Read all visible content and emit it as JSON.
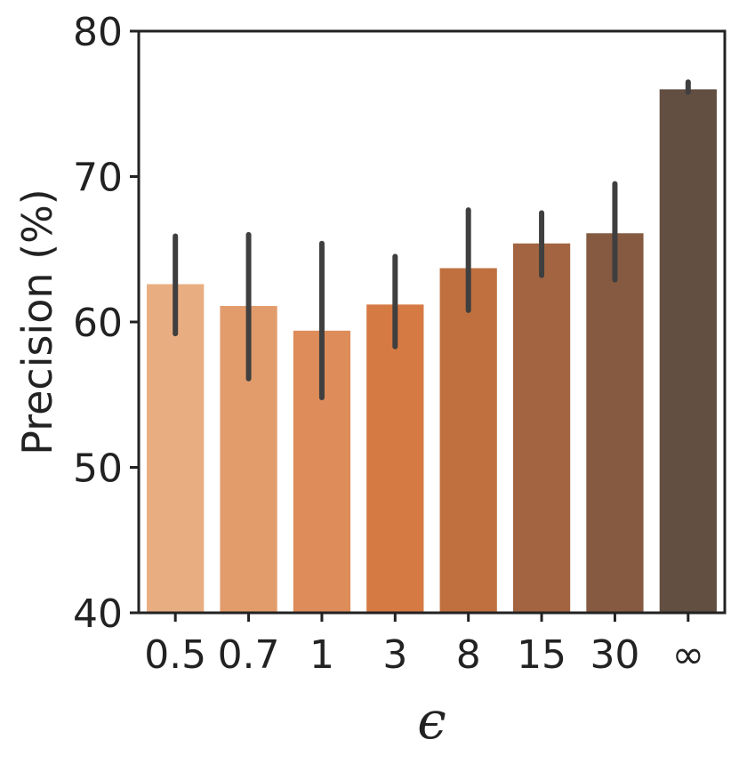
{
  "chart_data": {
    "type": "bar",
    "title": "",
    "xlabel": "ϵ",
    "ylabel": "Precision (%)",
    "ylim": [
      40,
      80
    ],
    "yticks": [
      "40",
      "50",
      "60",
      "70",
      "80"
    ],
    "categories": [
      "0.5",
      "0.7",
      "1",
      "3",
      "8",
      "15",
      "30",
      "∞"
    ],
    "values": [
      62.6,
      61.1,
      59.4,
      61.2,
      63.7,
      65.4,
      66.1,
      76.0
    ],
    "error_low": [
      59.2,
      56.1,
      54.8,
      58.3,
      60.8,
      63.2,
      62.9,
      75.8
    ],
    "error_high": [
      65.9,
      66.0,
      65.4,
      64.5,
      67.7,
      67.5,
      69.5,
      76.5
    ],
    "colors": [
      "#e8ae82",
      "#e29c6c",
      "#dd8c5a",
      "#d67a43",
      "#c0703f",
      "#a36541",
      "#855a40",
      "#624f42"
    ],
    "errorbar_color": "#3f3f3f",
    "grid": false,
    "legend": "none"
  }
}
